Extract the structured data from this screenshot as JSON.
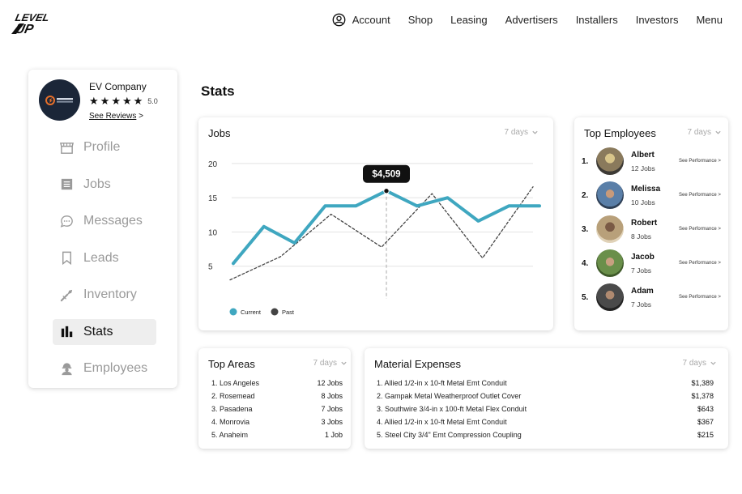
{
  "nav": {
    "items": [
      "Account",
      "Shop",
      "Leasing",
      "Advertisers",
      "Installers",
      "Investors",
      "Menu"
    ]
  },
  "company": {
    "name": "EV Company",
    "rating": "5.0",
    "stars": 5,
    "see_reviews": "See Reviews",
    "see_reviews_arrow": ">"
  },
  "sidebar": {
    "items": [
      {
        "label": "Profile",
        "icon": "storefront-icon"
      },
      {
        "label": "Jobs",
        "icon": "list-icon"
      },
      {
        "label": "Messages",
        "icon": "chat-bubble-icon"
      },
      {
        "label": "Leads",
        "icon": "bookmark-icon"
      },
      {
        "label": "Inventory",
        "icon": "wrench-icon"
      },
      {
        "label": "Stats",
        "icon": "bar-chart-icon",
        "active": true
      },
      {
        "label": "Employees",
        "icon": "worker-icon"
      }
    ]
  },
  "page_title": "Stats",
  "jobs_card": {
    "title": "Jobs",
    "range": "7 days",
    "tooltip": "$4,509"
  },
  "chart_data": {
    "type": "line",
    "y_ticks": [
      5,
      10,
      15,
      20
    ],
    "ylim": [
      0,
      22
    ],
    "legend_position": "bottom-left",
    "grid": true,
    "series": [
      {
        "name": "Current",
        "color": "#3fa7c0",
        "style": "solid",
        "values": [
          5.4,
          10.8,
          8.4,
          13.8,
          13.8,
          16.0,
          13.8,
          15.0,
          11.6,
          13.8,
          13.8
        ]
      },
      {
        "name": "Past",
        "color": "#444444",
        "style": "dotted",
        "values": [
          3.0,
          6.4,
          12.6,
          7.8,
          15.6,
          6.2,
          16.6
        ]
      }
    ],
    "highlight": {
      "series": 0,
      "index": 5
    }
  },
  "employees_card": {
    "title": "Top Employees",
    "range": "7 days",
    "items": [
      {
        "rank": "1.",
        "name": "Albert",
        "jobs": "12 Jobs",
        "perf": "See Performance >",
        "photo_color": "#8a7a5c"
      },
      {
        "rank": "2.",
        "name": "Melissa",
        "jobs": "10 Jobs",
        "perf": "See Performance >",
        "photo_color": "#5a7fa8"
      },
      {
        "rank": "3.",
        "name": "Robert",
        "jobs": "8 Jobs",
        "perf": "See Performance >",
        "photo_color": "#b8a07a"
      },
      {
        "rank": "4.",
        "name": "Jacob",
        "jobs": "7 Jobs",
        "perf": "See Performance >",
        "photo_color": "#6a8f4a"
      },
      {
        "rank": "5.",
        "name": "Adam",
        "jobs": "7 Jobs",
        "perf": "See Performance >",
        "photo_color": "#4a4a4a"
      }
    ]
  },
  "areas_card": {
    "title": "Top Areas",
    "range": "7 days",
    "items": [
      {
        "label": "1. Los Angeles",
        "value": "12 Jobs"
      },
      {
        "label": "2. Rosemead",
        "value": "8 Jobs"
      },
      {
        "label": "3. Pasadena",
        "value": "7 Jobs"
      },
      {
        "label": "4. Monrovia",
        "value": "3 Jobs"
      },
      {
        "label": "5. Anaheim",
        "value": "1 Job"
      }
    ]
  },
  "materials_card": {
    "title": "Material Expenses",
    "range": "7 days",
    "items": [
      {
        "label": "1. Allied 1/2-in x 10-ft Metal Emt Conduit",
        "value": "$1,389"
      },
      {
        "label": "2. Gampak Metal Weatherproof Outlet Cover",
        "value": "$1,378"
      },
      {
        "label": "3. Southwire 3/4-in x 100-ft Metal Flex Conduit",
        "value": "$643"
      },
      {
        "label": "4. Allied 1/2-in x 10-ft Metal Emt Conduit",
        "value": "$367"
      },
      {
        "label": "5. Steel City 3/4\" Emt Compression Coupling",
        "value": "$215"
      }
    ]
  }
}
